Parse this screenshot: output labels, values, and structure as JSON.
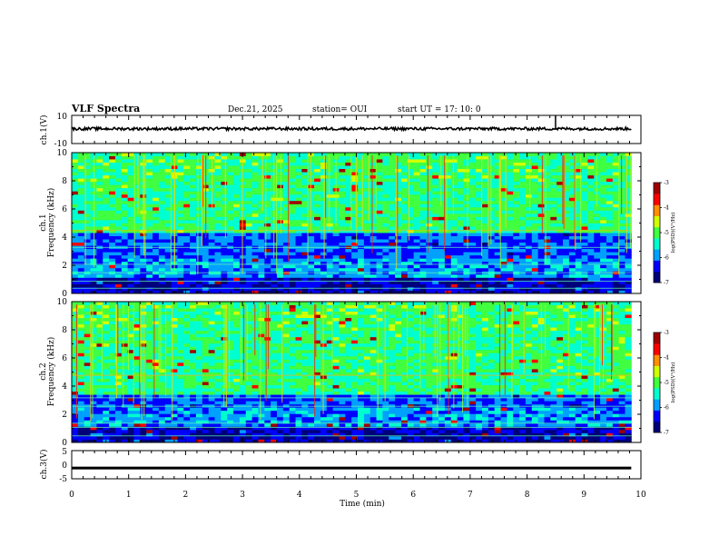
{
  "header": {
    "title": "VLF Spectra",
    "date": "Dec.21, 2025",
    "station": "station= OUI",
    "start_ut": "start UT = 17: 10: 0"
  },
  "chart_data": {
    "type": "heatmap",
    "xlabel": "Time (min)",
    "xlim": [
      0,
      10
    ],
    "x_ticks": [
      "0",
      "1",
      "2",
      "3",
      "4",
      "5",
      "6",
      "7",
      "8",
      "9",
      "10"
    ],
    "panels": [
      {
        "id": "ch1v",
        "ylabel": "ch.1(V)",
        "ylim": [
          -10,
          10
        ],
        "y_ticks": [
          "10",
          "-10"
        ],
        "kind": "waveform",
        "level": 0.5,
        "amplitude": 1,
        "spike_at_min": 8.5
      },
      {
        "id": "ch1",
        "ylabel_line1": "ch.1",
        "ylabel_line2": "Frequency (kHz)",
        "ylim": [
          0,
          10
        ],
        "y_ticks": [
          "0",
          "2",
          "4",
          "6",
          "8",
          "10"
        ],
        "kind": "spectrogram",
        "data_extent_min": 9.83,
        "bright_band_khz": [
          4.3,
          10
        ],
        "quiet_band_khz": [
          0,
          4.2
        ]
      },
      {
        "id": "ch2",
        "ylabel_line1": "ch.2",
        "ylabel_line2": "Frequency (kHz)",
        "ylim": [
          0,
          10
        ],
        "y_ticks": [
          "0",
          "2",
          "4",
          "6",
          "8",
          "10"
        ],
        "kind": "spectrogram",
        "data_extent_min": 9.83,
        "bright_band_khz": [
          3.3,
          10
        ],
        "quiet_band_khz": [
          0,
          3.2
        ]
      },
      {
        "id": "ch3v",
        "ylabel": "ch.3(V)",
        "ylim": [
          -5,
          5
        ],
        "y_ticks": [
          "5",
          "0",
          "-5"
        ],
        "kind": "waveform",
        "level": -1,
        "amplitude": 0.3
      }
    ],
    "colorbar": {
      "range": [
        -7,
        -3
      ],
      "ticks": [
        "-3",
        "-4",
        "-5",
        "-6",
        "-7"
      ],
      "label": "log(PSD)(V²/Hz)",
      "colors": [
        "#00007a",
        "#0000ff",
        "#00a0ff",
        "#00ffd0",
        "#40ff40",
        "#d0ff00",
        "#ff9000",
        "#ff0000",
        "#a00000"
      ]
    }
  }
}
